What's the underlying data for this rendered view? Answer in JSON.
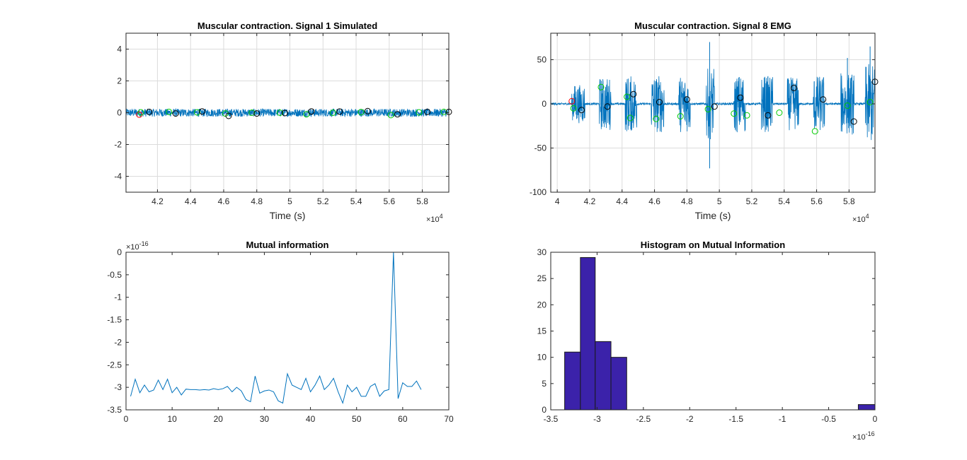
{
  "chart_data": [
    {
      "type": "line",
      "title": "Muscular contraction. Signal 1 Simulated",
      "xlabel": "Time (s)",
      "ylabel": "",
      "x_exponent": "4",
      "xlim": [
        40100,
        59600
      ],
      "ylim": [
        -5,
        5
      ],
      "xticks": [
        42000,
        44000,
        46000,
        48000,
        50000,
        52000,
        54000,
        56000,
        58000
      ],
      "xtick_labels": [
        "4.2",
        "4.4",
        "4.6",
        "4.8",
        "5",
        "5.2",
        "5.4",
        "5.6",
        "5.8"
      ],
      "yticks": [
        -4,
        -2,
        0,
        2,
        4
      ],
      "ytick_labels": [
        "-4",
        "-2",
        "0",
        "2",
        "4"
      ],
      "grid": true,
      "signal": {
        "name": "",
        "color": "#0072bd",
        "baseline": 0,
        "amplitude": 0.25
      },
      "markers": [
        {
          "color": "#ff0000",
          "points": [
            [
              40900,
              -0.12
            ]
          ]
        },
        {
          "color": "#00cc00",
          "points": [
            [
              41000,
              0.02
            ],
            [
              42700,
              0.05
            ],
            [
              44400,
              0.02
            ],
            [
              46100,
              -0.05
            ],
            [
              47700,
              0.0
            ],
            [
              49400,
              0.0
            ],
            [
              51000,
              -0.1
            ],
            [
              52600,
              0.0
            ],
            [
              54300,
              0.04
            ],
            [
              56100,
              -0.15
            ],
            [
              57800,
              0.02
            ],
            [
              59300,
              0.05
            ]
          ]
        },
        {
          "color": "#000000",
          "points": [
            [
              41500,
              0.05
            ],
            [
              43100,
              -0.05
            ],
            [
              44700,
              0.08
            ],
            [
              46300,
              -0.2
            ],
            [
              48000,
              -0.05
            ],
            [
              49700,
              -0.02
            ],
            [
              51300,
              0.08
            ],
            [
              53000,
              0.07
            ],
            [
              54700,
              0.1
            ],
            [
              56500,
              -0.1
            ],
            [
              58300,
              0.05
            ],
            [
              59600,
              0.05
            ]
          ]
        }
      ]
    },
    {
      "type": "line",
      "title": "Muscular contraction. Signal 8 EMG",
      "xlabel": "Time (s)",
      "ylabel": "",
      "x_exponent": "4",
      "xlim": [
        39600,
        59600
      ],
      "ylim": [
        -100,
        80
      ],
      "xticks": [
        40000,
        42000,
        44000,
        46000,
        48000,
        50000,
        52000,
        54000,
        56000,
        58000
      ],
      "xtick_labels": [
        "4",
        "4.2",
        "4.4",
        "4.6",
        "4.8",
        "5",
        "5.2",
        "5.4",
        "5.6",
        "5.8"
      ],
      "yticks": [
        -100,
        -50,
        0,
        50
      ],
      "ytick_labels": [
        "-100",
        "-50",
        "0",
        "50"
      ],
      "grid": true,
      "signal": {
        "name": "",
        "color": "#0072bd",
        "bursts": [
          {
            "start": 40900,
            "end": 41700,
            "amp": 22
          },
          {
            "start": 42600,
            "end": 43300,
            "amp": 30
          },
          {
            "start": 44200,
            "end": 44900,
            "amp": 32
          },
          {
            "start": 45800,
            "end": 46600,
            "amp": 33
          },
          {
            "start": 47500,
            "end": 48200,
            "amp": 32
          },
          {
            "start": 49200,
            "end": 49700,
            "amp": 40
          },
          {
            "start": 50900,
            "end": 51600,
            "amp": 33
          },
          {
            "start": 52600,
            "end": 53300,
            "amp": 32
          },
          {
            "start": 54200,
            "end": 54900,
            "amp": 30
          },
          {
            "start": 55800,
            "end": 56500,
            "amp": 32
          },
          {
            "start": 57500,
            "end": 58300,
            "amp": 35
          },
          {
            "start": 59000,
            "end": 59600,
            "amp": 45
          }
        ],
        "spikes": [
          [
            49400,
            70
          ],
          [
            49400,
            -73
          ],
          [
            57900,
            52
          ],
          [
            59300,
            65
          ]
        ]
      },
      "markers": [
        {
          "color": "#ff0000",
          "points": [
            [
              40900,
              3
            ]
          ]
        },
        {
          "color": "#00cc00",
          "points": [
            [
              41000,
              -5
            ],
            [
              42700,
              19
            ],
            [
              44300,
              8
            ],
            [
              44500,
              -16
            ],
            [
              46100,
              -17
            ],
            [
              47600,
              -14
            ],
            [
              49300,
              -6
            ],
            [
              50900,
              -11
            ],
            [
              51700,
              -13
            ],
            [
              53700,
              -10
            ],
            [
              55900,
              -31
            ],
            [
              57900,
              -2
            ],
            [
              59300,
              2
            ]
          ]
        },
        {
          "color": "#000000",
          "points": [
            [
              41500,
              -7
            ],
            [
              43100,
              -3
            ],
            [
              44700,
              11
            ],
            [
              46300,
              2
            ],
            [
              48000,
              5
            ],
            [
              49700,
              -3
            ],
            [
              51300,
              7
            ],
            [
              53000,
              -13
            ],
            [
              54600,
              18
            ],
            [
              56400,
              5
            ],
            [
              58300,
              -20
            ],
            [
              59600,
              25
            ]
          ]
        }
      ]
    },
    {
      "type": "line",
      "title": "Mutual information",
      "xlabel": "",
      "ylabel": "",
      "y_exponent": "-16",
      "xlim": [
        0,
        70
      ],
      "ylim": [
        -3.5,
        0
      ],
      "xticks": [
        0,
        10,
        20,
        30,
        40,
        50,
        60,
        70
      ],
      "xtick_labels": [
        "0",
        "10",
        "20",
        "30",
        "40",
        "50",
        "60",
        "70"
      ],
      "yticks": [
        -3.5,
        -3,
        -2.5,
        -2,
        -1.5,
        -1,
        -0.5,
        0
      ],
      "ytick_labels": [
        "-3.5",
        "-3",
        "-2.5",
        "-2",
        "-1.5",
        "-1",
        "-0.5",
        "0"
      ],
      "grid": false,
      "series": [
        {
          "name": "",
          "color": "#0072bd",
          "x": [
            1,
            2,
            3,
            4,
            5,
            6,
            7,
            8,
            9,
            10,
            11,
            12,
            13,
            14,
            15,
            16,
            17,
            18,
            19,
            20,
            21,
            22,
            23,
            24,
            25,
            26,
            27,
            28,
            29,
            30,
            31,
            32,
            33,
            34,
            35,
            36,
            37,
            38,
            39,
            40,
            41,
            42,
            43,
            44,
            45,
            46,
            47,
            48,
            49,
            50,
            51,
            52,
            53,
            54,
            55,
            56,
            57,
            58,
            59,
            60,
            61,
            62,
            63,
            64
          ],
          "values": [
            -3.2,
            -2.82,
            -3.12,
            -2.95,
            -3.1,
            -3.06,
            -2.84,
            -3.05,
            -2.82,
            -3.12,
            -3.0,
            -3.17,
            -3.04,
            -3.05,
            -3.05,
            -3.06,
            -3.05,
            -3.06,
            -3.03,
            -3.05,
            -3.03,
            -2.98,
            -3.1,
            -3.0,
            -3.08,
            -3.27,
            -3.32,
            -2.75,
            -3.13,
            -3.08,
            -3.06,
            -3.1,
            -3.3,
            -3.35,
            -2.7,
            -2.95,
            -3.0,
            -3.05,
            -2.8,
            -3.1,
            -2.95,
            -2.75,
            -3.05,
            -2.95,
            -2.8,
            -3.1,
            -3.35,
            -2.95,
            -3.1,
            -3.0,
            -3.2,
            -3.2,
            -2.98,
            -2.92,
            -3.2,
            -3.08,
            -3.05,
            0,
            -3.25,
            -2.9,
            -2.98,
            -2.98,
            -2.86,
            -3.05
          ]
        }
      ]
    },
    {
      "type": "bar",
      "title": "Histogram on Mutual Information",
      "xlabel": "",
      "ylabel": "",
      "x_exponent": "-16",
      "xlim": [
        -3.5,
        0
      ],
      "ylim": [
        0,
        30
      ],
      "xticks": [
        -3.5,
        -3,
        -2.5,
        -2,
        -1.5,
        -1,
        -0.5,
        0
      ],
      "xtick_labels": [
        "-3.5",
        "-3",
        "-2.5",
        "-2",
        "-1.5",
        "-1",
        "-0.5",
        "0"
      ],
      "yticks": [
        0,
        5,
        10,
        15,
        20,
        25,
        30
      ],
      "ytick_labels": [
        "0",
        "5",
        "10",
        "15",
        "20",
        "25",
        "30"
      ],
      "grid": false,
      "bar_color": "#3b22aa",
      "bin_edges": [
        -3.35,
        -3.18,
        -3.02,
        -2.85,
        -2.68,
        -2.52,
        -2.35,
        -2.18,
        -2.02,
        -1.85,
        -1.68,
        -1.52,
        -1.35,
        -1.18,
        -1.02,
        -0.85,
        -0.68,
        -0.52,
        -0.35,
        -0.18,
        0
      ],
      "values": [
        11,
        29,
        13,
        10,
        0,
        0,
        0,
        0,
        0,
        0,
        0,
        0,
        0,
        0,
        0,
        0,
        0,
        0,
        0,
        1
      ]
    }
  ]
}
